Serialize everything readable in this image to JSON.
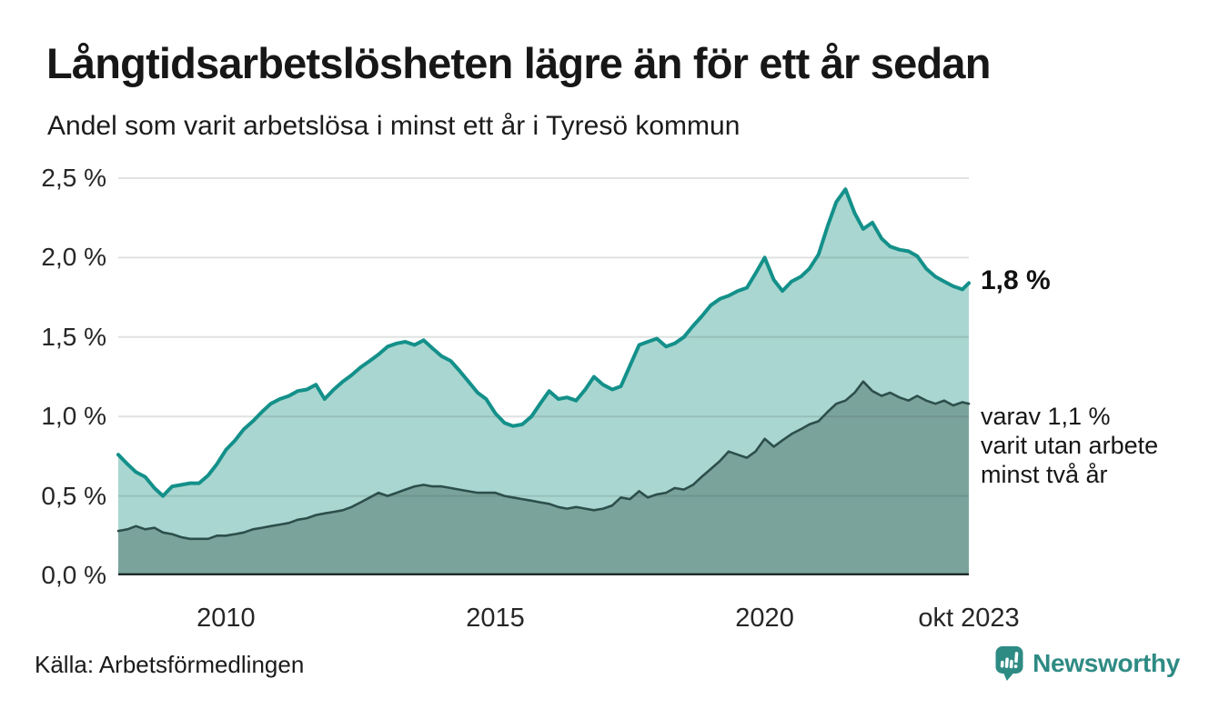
{
  "header": {
    "title": "Långtidsarbetslösheten lägre än för ett år sedan",
    "subtitle": "Andel som varit arbetslösa i minst ett år i Tyresö kommun"
  },
  "annotations": {
    "latest_total": "1,8 %",
    "varav_lines": [
      "varav 1,1 %",
      "varit utan arbete",
      "minst två år"
    ]
  },
  "footer": {
    "source": "Källa: Arbetsförmedlingen",
    "brand": "Newsworthy",
    "brand_color": "#2e8b84"
  },
  "chart_data": {
    "type": "area",
    "title": "Långtidsarbetslösheten lägre än för ett år sedan",
    "subtitle": "Andel som varit arbetslösa i minst ett år i Tyresö kommun",
    "x_unit": "decimal_year",
    "xlim": [
      2008,
      2023.79
    ],
    "ylim": [
      0,
      2.5
    ],
    "grid": true,
    "legend_position": "direct-labels-right",
    "colors": {
      "gridline": "rgba(62,76,73,0.16)",
      "axis_line": "#1d2a27"
    },
    "yticks": {
      "values": [
        0,
        0.5,
        1.0,
        1.5,
        2.0,
        2.5
      ],
      "labels": [
        "0,0 %",
        "0,5 %",
        "1,0 %",
        "1,5 %",
        "2,0 %",
        "2,5 %"
      ]
    },
    "xticks": {
      "values": [
        2010,
        2015,
        2020,
        2023.79
      ],
      "labels": [
        "2010",
        "2015",
        "2020",
        "okt 2023"
      ]
    },
    "x": [
      2008,
      2008.17,
      2008.33,
      2008.5,
      2008.67,
      2008.83,
      2009,
      2009.17,
      2009.33,
      2009.5,
      2009.67,
      2009.83,
      2010,
      2010.17,
      2010.33,
      2010.5,
      2010.67,
      2010.83,
      2011,
      2011.17,
      2011.33,
      2011.5,
      2011.67,
      2011.83,
      2012,
      2012.17,
      2012.33,
      2012.5,
      2012.67,
      2012.83,
      2013,
      2013.17,
      2013.33,
      2013.5,
      2013.67,
      2013.83,
      2014,
      2014.17,
      2014.33,
      2014.5,
      2014.67,
      2014.83,
      2015,
      2015.17,
      2015.33,
      2015.5,
      2015.67,
      2015.83,
      2016,
      2016.17,
      2016.33,
      2016.5,
      2016.67,
      2016.83,
      2017,
      2017.17,
      2017.33,
      2017.5,
      2017.67,
      2017.83,
      2018,
      2018.17,
      2018.33,
      2018.5,
      2018.67,
      2018.83,
      2019,
      2019.17,
      2019.33,
      2019.5,
      2019.67,
      2019.83,
      2020,
      2020.17,
      2020.33,
      2020.5,
      2020.67,
      2020.83,
      2021,
      2021.17,
      2021.33,
      2021.5,
      2021.67,
      2021.83,
      2022,
      2022.17,
      2022.33,
      2022.5,
      2022.67,
      2022.83,
      2023,
      2023.17,
      2023.33,
      2023.5,
      2023.67,
      2023.79
    ],
    "series": [
      {
        "id": "minst-ett-ar",
        "name": "Andel arbetslösa minst ett år",
        "latest_value": 1.8,
        "line_color": "#14908a",
        "fill_color": "#a9d6d0",
        "values": [
          0.76,
          0.7,
          0.65,
          0.62,
          0.55,
          0.5,
          0.56,
          0.57,
          0.58,
          0.58,
          0.63,
          0.7,
          0.79,
          0.85,
          0.92,
          0.97,
          1.03,
          1.08,
          1.11,
          1.13,
          1.16,
          1.17,
          1.2,
          1.11,
          1.17,
          1.22,
          1.26,
          1.31,
          1.35,
          1.39,
          1.44,
          1.46,
          1.47,
          1.45,
          1.48,
          1.43,
          1.38,
          1.35,
          1.29,
          1.22,
          1.15,
          1.11,
          1.02,
          0.96,
          0.94,
          0.95,
          1.0,
          1.08,
          1.16,
          1.11,
          1.12,
          1.1,
          1.17,
          1.25,
          1.2,
          1.17,
          1.19,
          1.32,
          1.45,
          1.47,
          1.49,
          1.44,
          1.46,
          1.5,
          1.57,
          1.63,
          1.7,
          1.74,
          1.76,
          1.79,
          1.81,
          1.9,
          2.0,
          1.86,
          1.79,
          1.85,
          1.88,
          1.93,
          2.02,
          2.2,
          2.35,
          2.43,
          2.28,
          2.18,
          2.22,
          2.12,
          2.07,
          2.05,
          2.04,
          2.01,
          1.93,
          1.88,
          1.85,
          1.82,
          1.8,
          1.84
        ]
      },
      {
        "id": "minst-tva-ar",
        "name": "varav arbetslösa minst två år",
        "latest_value": 1.1,
        "line_color": "#2d4f4b",
        "fill_color": "#7aa39c",
        "values": [
          0.28,
          0.29,
          0.31,
          0.29,
          0.3,
          0.27,
          0.26,
          0.24,
          0.23,
          0.23,
          0.23,
          0.25,
          0.25,
          0.26,
          0.27,
          0.29,
          0.3,
          0.31,
          0.32,
          0.33,
          0.35,
          0.36,
          0.38,
          0.39,
          0.4,
          0.41,
          0.43,
          0.46,
          0.49,
          0.52,
          0.5,
          0.52,
          0.54,
          0.56,
          0.57,
          0.56,
          0.56,
          0.55,
          0.54,
          0.53,
          0.52,
          0.52,
          0.52,
          0.5,
          0.49,
          0.48,
          0.47,
          0.46,
          0.45,
          0.43,
          0.42,
          0.43,
          0.42,
          0.41,
          0.42,
          0.44,
          0.49,
          0.48,
          0.53,
          0.49,
          0.51,
          0.52,
          0.55,
          0.54,
          0.57,
          0.62,
          0.67,
          0.72,
          0.78,
          0.76,
          0.74,
          0.78,
          0.86,
          0.81,
          0.85,
          0.89,
          0.92,
          0.95,
          0.97,
          1.03,
          1.08,
          1.1,
          1.15,
          1.22,
          1.16,
          1.13,
          1.15,
          1.12,
          1.1,
          1.13,
          1.1,
          1.08,
          1.1,
          1.07,
          1.09,
          1.08
        ]
      }
    ]
  }
}
